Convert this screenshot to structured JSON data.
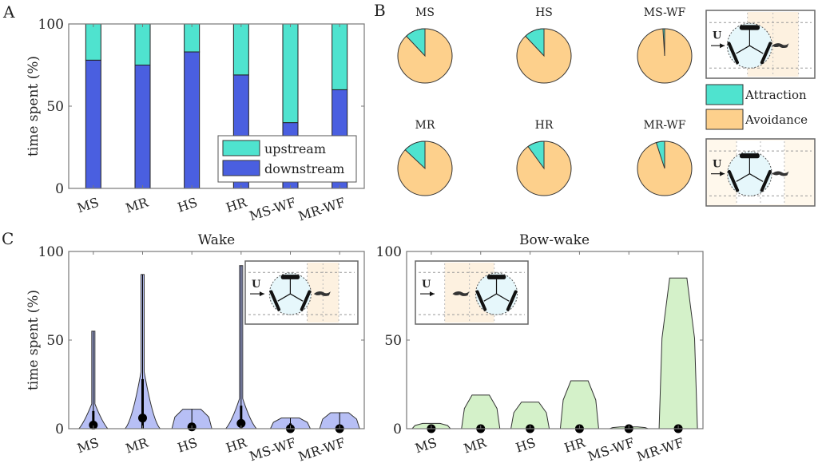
{
  "colors": {
    "upstream": "#4fe3cf",
    "downstream": "#4a5fe0",
    "attraction": "#4fe3cf",
    "avoidance": "#fdd08c",
    "wake_violin": "#aab4f3",
    "bowwake_violin": "#cdeec0",
    "axis": "#777777"
  },
  "panel_labels": {
    "a": "A",
    "b": "B",
    "c": "C"
  },
  "chart_data": [
    {
      "id": "A",
      "type": "bar",
      "stacked": true,
      "categories": [
        "MS",
        "MR",
        "HS",
        "HR",
        "MS-WF",
        "MR-WF"
      ],
      "series": [
        {
          "name": "downstream",
          "values": [
            78,
            75,
            83,
            69,
            40,
            60
          ]
        },
        {
          "name": "upstream",
          "values": [
            22,
            25,
            17,
            31,
            60,
            40
          ]
        }
      ],
      "ylabel": "time spent (%)",
      "ylim": [
        0,
        100
      ],
      "yticks": [
        "0",
        "50",
        "100"
      ],
      "legend": {
        "placement": "bottom-right",
        "entries": [
          "upstream",
          "downstream"
        ]
      }
    },
    {
      "id": "B",
      "type": "pie",
      "pies": [
        {
          "title": "MS",
          "attraction": 12,
          "avoidance": 88
        },
        {
          "title": "HS",
          "attraction": 12,
          "avoidance": 88
        },
        {
          "title": "MS-WF",
          "attraction": 1,
          "avoidance": 99
        },
        {
          "title": "MR",
          "attraction": 13,
          "avoidance": 87
        },
        {
          "title": "HR",
          "attraction": 10,
          "avoidance": 90
        },
        {
          "title": "MR-WF",
          "attraction": 5,
          "avoidance": 95
        }
      ],
      "legend": {
        "placement": "right",
        "entries": [
          "Attraction",
          "Avoidance"
        ]
      },
      "insets": [
        {
          "flow_label": "U"
        },
        {
          "flow_label": "U"
        }
      ]
    },
    {
      "id": "C-wake",
      "type": "violin",
      "title": "Wake",
      "categories": [
        "MS",
        "MR",
        "HS",
        "HR",
        "MS-WF",
        "MR-WF"
      ],
      "median": [
        2,
        6,
        1,
        3,
        0,
        0
      ],
      "q3": [
        10,
        28,
        2,
        13,
        3,
        0
      ],
      "max": [
        55,
        87,
        11,
        92,
        6,
        9
      ],
      "ylabel": "time spent (%)",
      "ylim": [
        0,
        100
      ],
      "yticks": [
        "0",
        "50",
        "100"
      ],
      "inset": {
        "flow_label": "U"
      }
    },
    {
      "id": "C-bowwake",
      "type": "violin",
      "title": "Bow-wake",
      "categories": [
        "MS",
        "MR",
        "HS",
        "HR",
        "MS-WF",
        "MR-WF"
      ],
      "median": [
        0,
        0,
        0,
        0,
        0,
        0
      ],
      "max": [
        3,
        19,
        15,
        27,
        1,
        85
      ],
      "ylim": [
        0,
        100
      ],
      "yticks": [
        "0",
        "50",
        "100"
      ],
      "inset": {
        "flow_label": "U"
      }
    }
  ]
}
